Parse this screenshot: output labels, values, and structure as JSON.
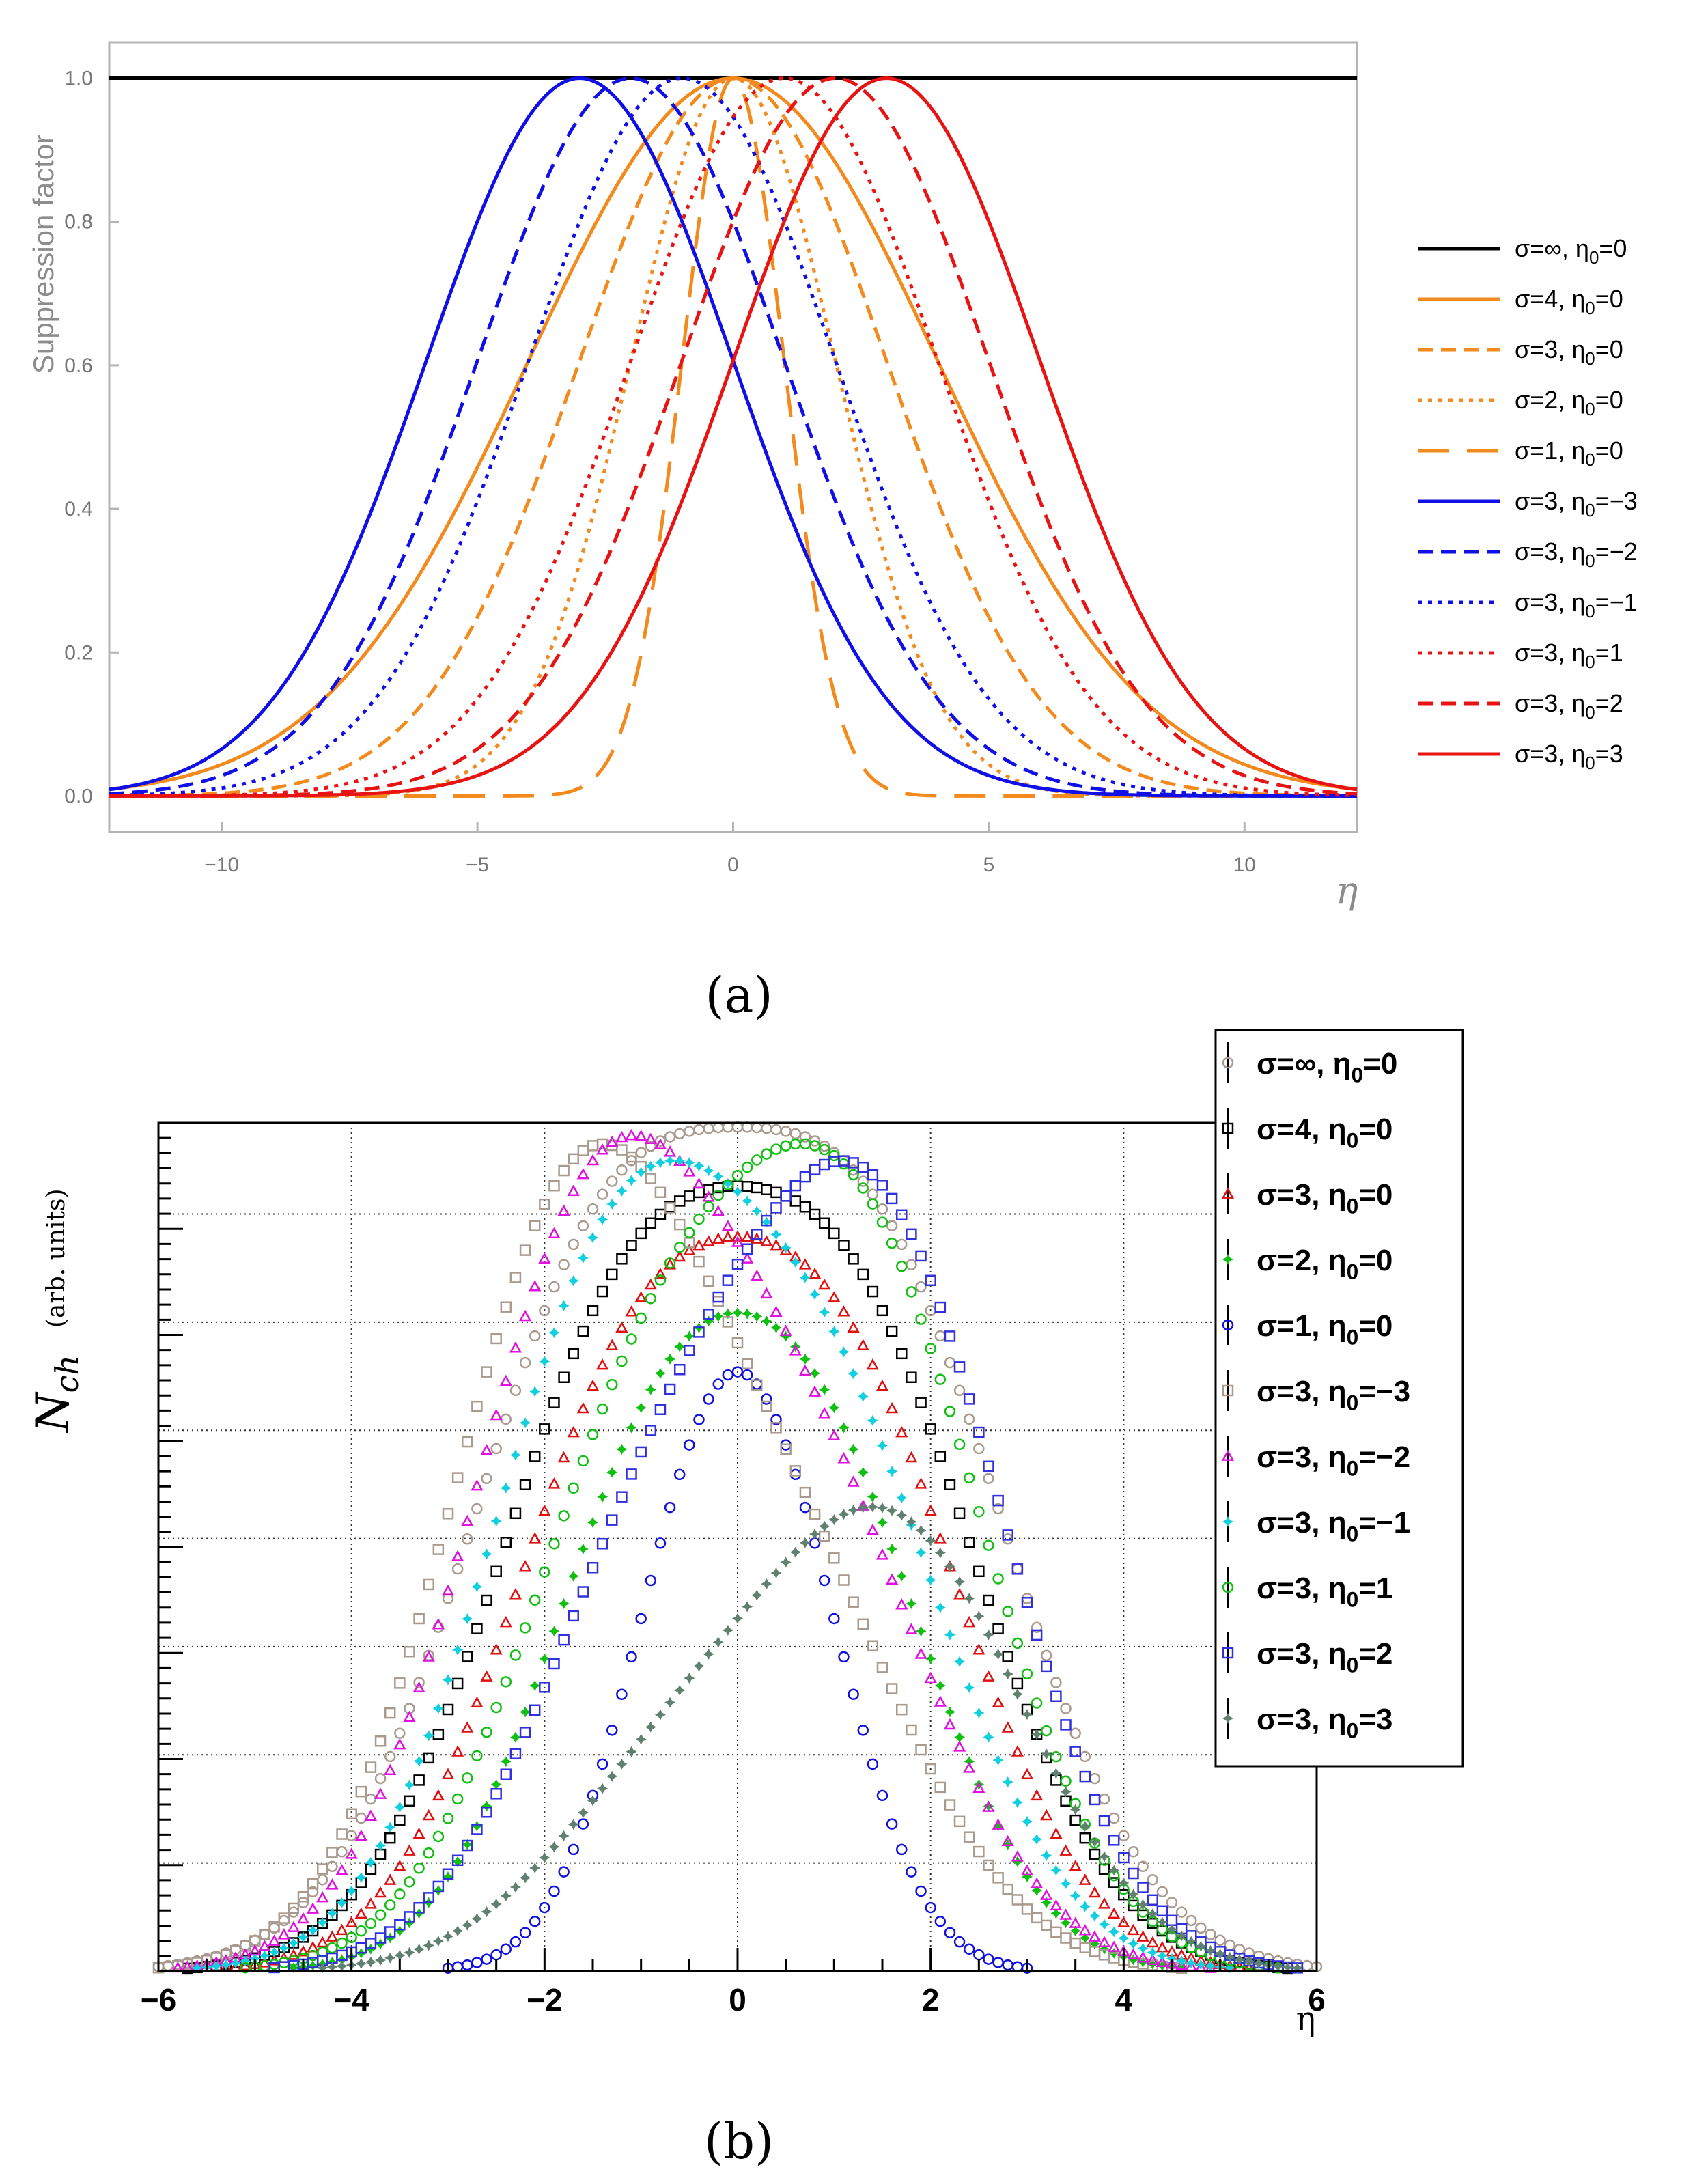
{
  "panel_a_caption": "(a)",
  "panel_b_caption": "(b)",
  "chart_data": [
    {
      "type": "line",
      "title": "",
      "xlabel": "η",
      "ylabel": "Suppression factor",
      "xlim": [
        -12.2,
        12.2
      ],
      "ylim": [
        -0.05,
        1.05
      ],
      "xticks": [
        -10,
        -5,
        0,
        5,
        10
      ],
      "xtick_labels": [
        "−10",
        "−5",
        "0",
        "5",
        "10"
      ],
      "yticks": [
        0.0,
        0.2,
        0.4,
        0.6,
        0.8,
        1.0
      ],
      "ytick_labels": [
        "0.0",
        "0.2",
        "0.4",
        "0.6",
        "0.8",
        "1.0"
      ],
      "legend_position": "right",
      "function": "exp(-(eta-eta0)^2/(2 sigma^2))",
      "series": [
        {
          "name": "σ=∞, η0=0",
          "sigma": null,
          "eta0": 0,
          "color": "#000000",
          "dash": "solid"
        },
        {
          "name": "σ=4, η0=0",
          "sigma": 4,
          "eta0": 0,
          "color": "#f28a1e",
          "dash": "solid"
        },
        {
          "name": "σ=3, η0=0",
          "sigma": 3,
          "eta0": 0,
          "color": "#f28a1e",
          "dash": "dashed"
        },
        {
          "name": "σ=2, η0=0",
          "sigma": 2,
          "eta0": 0,
          "color": "#f28a1e",
          "dash": "dotted"
        },
        {
          "name": "σ=1, η0=0",
          "sigma": 1,
          "eta0": 0,
          "color": "#f28a1e",
          "dash": "longdash"
        },
        {
          "name": "σ=3, η0=−3",
          "sigma": 3,
          "eta0": -3,
          "color": "#1010e6",
          "dash": "solid"
        },
        {
          "name": "σ=3, η0=−2",
          "sigma": 3,
          "eta0": -2,
          "color": "#1010e6",
          "dash": "dashed"
        },
        {
          "name": "σ=3, η0=−1",
          "sigma": 3,
          "eta0": -1,
          "color": "#1010e6",
          "dash": "dotted"
        },
        {
          "name": "σ=3, η0=1",
          "sigma": 3,
          "eta0": 1,
          "color": "#e81414",
          "dash": "dotted"
        },
        {
          "name": "σ=3, η0=2",
          "sigma": 3,
          "eta0": 2,
          "color": "#e81414",
          "dash": "dashed"
        },
        {
          "name": "σ=3, η0=3",
          "sigma": 3,
          "eta0": 3,
          "color": "#e81414",
          "dash": "solid"
        }
      ]
    },
    {
      "type": "scatter",
      "title": "",
      "xlabel": "η",
      "ylabel": "N_ch (arb. units)",
      "ylabel_main": "N",
      "ylabel_sub": "ch",
      "ylabel_units": "(arb. units)",
      "xlim": [
        -6,
        6
      ],
      "ylim": [
        0,
        1.0
      ],
      "xticks": [
        -6,
        -4,
        -2,
        0,
        2,
        4,
        6
      ],
      "xtick_labels": [
        "−6",
        "−4",
        "−2",
        "0",
        "2",
        "4",
        "6"
      ],
      "grid": true,
      "legend_position": "top-right",
      "x_step": 0.1,
      "model": "Gaussian-weighted double-hump; values normalized to panel height",
      "series": [
        {
          "name": "σ=∞, η0=0",
          "sigma": null,
          "eta0": 0,
          "color": "#a89a8e",
          "marker": "circle",
          "peak": 1.0
        },
        {
          "name": "σ=4, η0=0",
          "sigma": 4,
          "eta0": 0,
          "color": "#000000",
          "marker": "square",
          "peak": 0.93
        },
        {
          "name": "σ=3, η0=0",
          "sigma": 3,
          "eta0": 0,
          "color": "#e01010",
          "marker": "triangle",
          "peak": 0.87
        },
        {
          "name": "σ=2, η0=0",
          "sigma": 2,
          "eta0": 0,
          "color": "#10c010",
          "marker": "star",
          "peak": 0.78
        },
        {
          "name": "σ=1, η0=0",
          "sigma": 1,
          "eta0": 0,
          "color": "#1010e0",
          "marker": "circle",
          "peak": 0.71
        },
        {
          "name": "σ=3, η0=−3",
          "sigma": 3,
          "eta0": -3,
          "color": "#a89a8e",
          "marker": "square",
          "peak": 0.98
        },
        {
          "name": "σ=3, η0=−2",
          "sigma": 3,
          "eta0": -2,
          "color": "#e010e0",
          "marker": "triangle",
          "peak": 0.99
        },
        {
          "name": "σ=3, η0=−1",
          "sigma": 3,
          "eta0": -1,
          "color": "#10d0e0",
          "marker": "star",
          "peak": 0.96
        },
        {
          "name": "σ=3, η0=1",
          "sigma": 3,
          "eta0": 1,
          "color": "#10c010",
          "marker": "circle",
          "peak": 0.98
        },
        {
          "name": "σ=3, η0=2",
          "sigma": 3,
          "eta0": 2,
          "color": "#3030e0",
          "marker": "square",
          "peak": 0.96
        },
        {
          "name": "σ=3, η0=3",
          "sigma": 3,
          "eta0": 3,
          "color": "#608070",
          "marker": "star",
          "peak": 0.55
        }
      ]
    }
  ]
}
